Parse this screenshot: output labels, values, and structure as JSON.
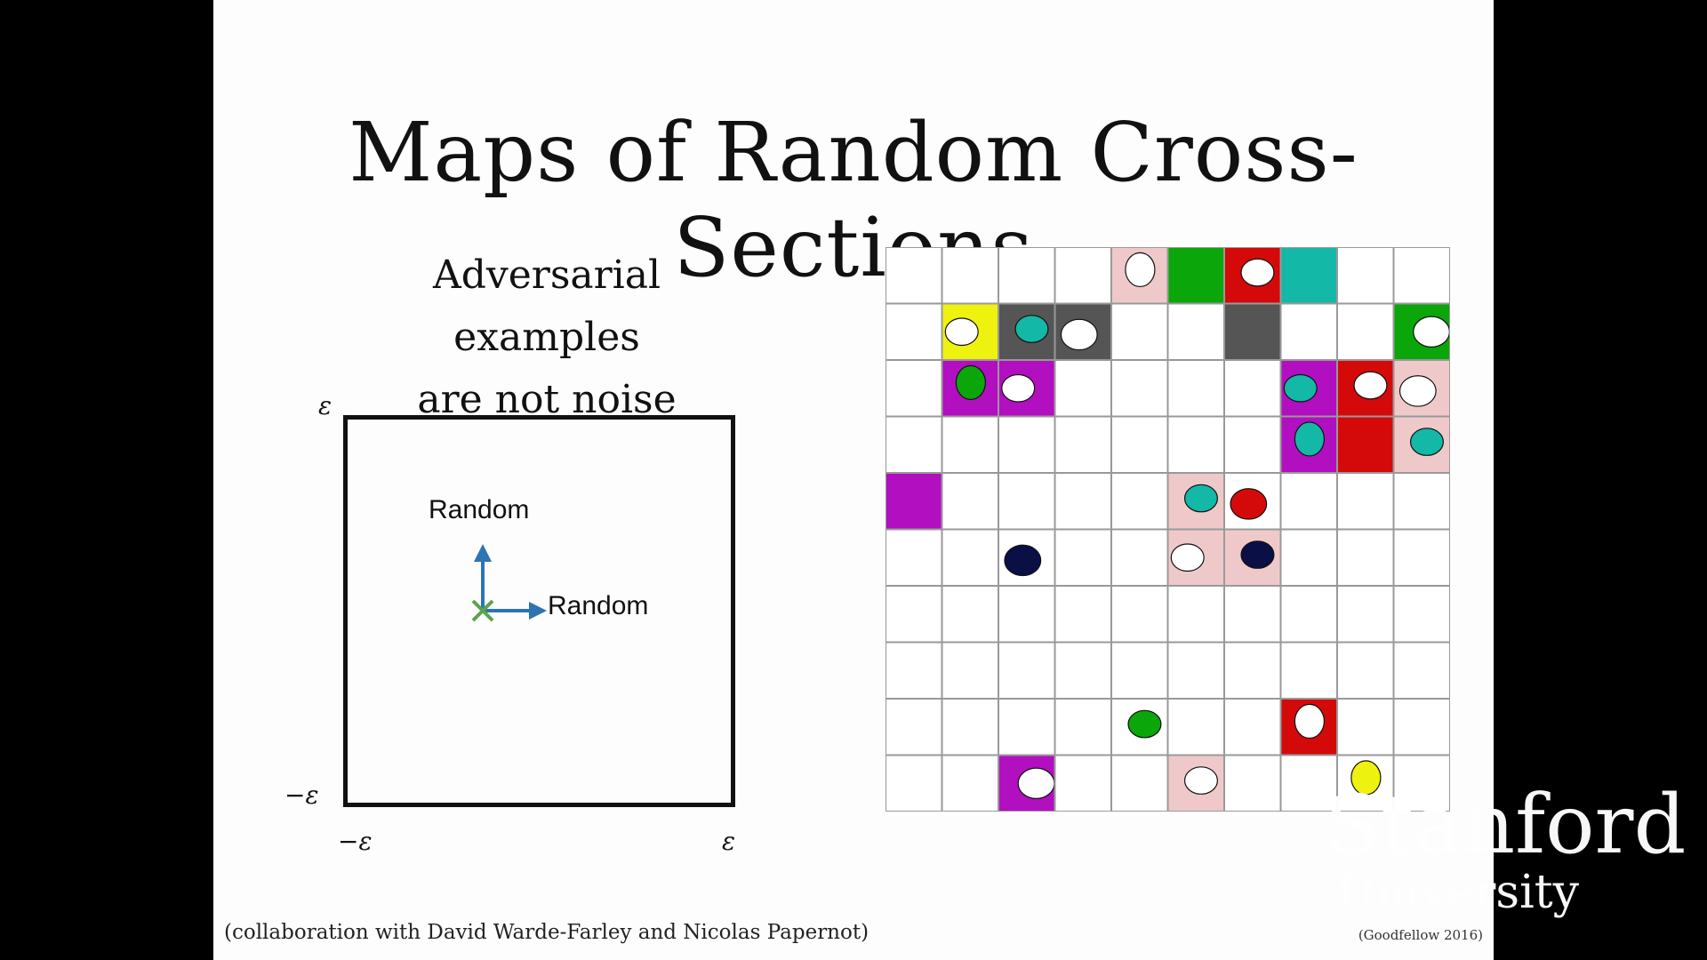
{
  "slide": {
    "title": "Maps of Random Cross-Sections",
    "subtitle_lines": [
      "Adversarial examples",
      "are not noise"
    ],
    "footer_left": "(collaboration with David Warde-Farley and Nicolas Papernot)",
    "footer_right": "(Goodfellow 2016)"
  },
  "diagram": {
    "eps_top": "ε",
    "eps_neg_y": "−ε",
    "eps_neg_x": "−ε",
    "eps_right": "ε",
    "arrow_up_label": "Random",
    "arrow_right_label": "Random",
    "colors": {
      "arrow": "#2c74b3",
      "origin_mark": "#5aa44a"
    }
  },
  "watermark": {
    "line1": "Stanford",
    "line2": "University"
  },
  "grid": {
    "rows": 10,
    "cols": 10,
    "cell_border_color": "#999999",
    "colors": {
      "pink": "#efc9c9",
      "green": "#0aa60a",
      "red": "#d40a0a",
      "teal": "#13b8a6",
      "gray": "#555555",
      "yellow": "#eef20f",
      "magenta": "#b10fbf",
      "navy": "#0a0f45",
      "white": "#ffffff"
    },
    "cells": [
      {
        "r": 0,
        "c": 4,
        "fill": "pink",
        "blob": "white"
      },
      {
        "r": 0,
        "c": 5,
        "fill": "green"
      },
      {
        "r": 0,
        "c": 6,
        "fill": "red",
        "blob": "white"
      },
      {
        "r": 0,
        "c": 7,
        "fill": "teal"
      },
      {
        "r": 1,
        "c": 1,
        "fill": "yellow",
        "blob": "white"
      },
      {
        "r": 1,
        "c": 2,
        "fill": "gray",
        "blob": "teal"
      },
      {
        "r": 1,
        "c": 3,
        "fill": "gray",
        "blob": "white"
      },
      {
        "r": 1,
        "c": 6,
        "fill": "gray"
      },
      {
        "r": 1,
        "c": 9,
        "fill": "green",
        "blob": "white"
      },
      {
        "r": 2,
        "c": 1,
        "fill": "magenta",
        "blob": "green"
      },
      {
        "r": 2,
        "c": 2,
        "fill": "magenta",
        "blob": "white"
      },
      {
        "r": 2,
        "c": 7,
        "fill": "magenta",
        "blob": "teal"
      },
      {
        "r": 2,
        "c": 8,
        "fill": "red",
        "blob": "white"
      },
      {
        "r": 2,
        "c": 9,
        "fill": "pink",
        "blob": "white"
      },
      {
        "r": 3,
        "c": 7,
        "fill": "magenta",
        "blob": "teal"
      },
      {
        "r": 3,
        "c": 8,
        "fill": "red"
      },
      {
        "r": 3,
        "c": 9,
        "fill": "pink",
        "blob": "teal"
      },
      {
        "r": 4,
        "c": 0,
        "fill": "magenta"
      },
      {
        "r": 4,
        "c": 5,
        "fill": "pink",
        "blob": "teal"
      },
      {
        "r": 4,
        "c": 6,
        "fill": "white",
        "blob": "red"
      },
      {
        "r": 5,
        "c": 2,
        "fill": "white",
        "blob": "navy"
      },
      {
        "r": 5,
        "c": 5,
        "fill": "pink",
        "blob": "white"
      },
      {
        "r": 5,
        "c": 6,
        "fill": "pink",
        "blob": "navy"
      },
      {
        "r": 8,
        "c": 4,
        "fill": "white",
        "blob": "green"
      },
      {
        "r": 8,
        "c": 7,
        "fill": "red",
        "blob": "white"
      },
      {
        "r": 9,
        "c": 2,
        "fill": "magenta",
        "blob": "white"
      },
      {
        "r": 9,
        "c": 5,
        "fill": "pink",
        "blob": "white"
      },
      {
        "r": 9,
        "c": 8,
        "fill": "white",
        "blob": "yellow"
      }
    ]
  }
}
